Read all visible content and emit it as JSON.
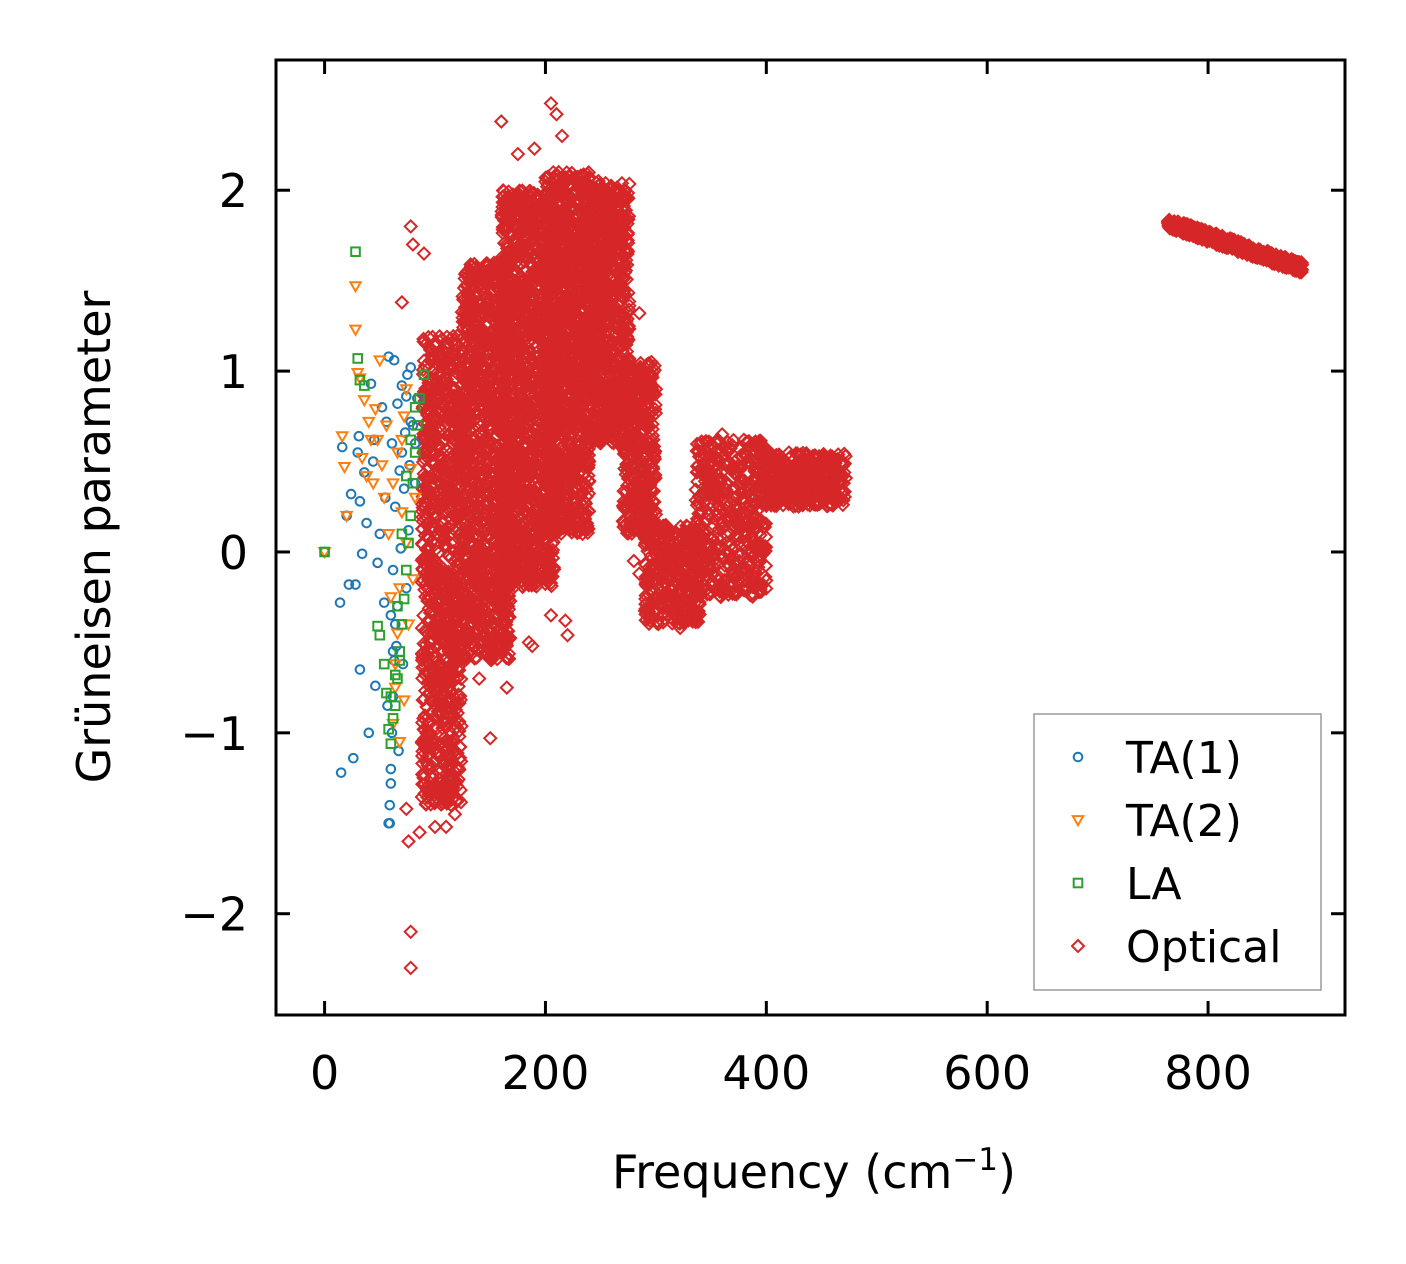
{
  "chart_data": {
    "type": "scatter",
    "title": "",
    "xlabel": "Frequency (cm",
    "xlabel_sup": "−1",
    "xlabel_close": ")",
    "ylabel": "Grüneisen parameter",
    "xlim": [
      -44,
      924
    ],
    "ylim": [
      -2.56,
      2.72
    ],
    "xticks": [
      0,
      200,
      400,
      600,
      800
    ],
    "xtick_labels": [
      "0",
      "200",
      "400",
      "600",
      "800"
    ],
    "yticks": [
      -2,
      -1,
      0,
      1,
      2
    ],
    "ytick_labels": [
      "−2",
      "−1",
      "0",
      "1",
      "2"
    ],
    "grid": false,
    "legend_position": "lower-right",
    "series": [
      {
        "name": "TA(1)",
        "marker": "circle",
        "color": "#1f77b4",
        "points": [
          [
            0,
            0
          ],
          [
            14,
            -0.28
          ],
          [
            15,
            -1.22
          ],
          [
            16,
            0.58
          ],
          [
            20,
            0.2
          ],
          [
            22,
            -0.18
          ],
          [
            24,
            0.32
          ],
          [
            26,
            -1.14
          ],
          [
            28,
            -0.18
          ],
          [
            30,
            0.55
          ],
          [
            31,
            0.64
          ],
          [
            32,
            0.28
          ],
          [
            32,
            -0.65
          ],
          [
            34,
            -0.01
          ],
          [
            36,
            0.44
          ],
          [
            38,
            0.16
          ],
          [
            40,
            -1.0
          ],
          [
            42,
            0.93
          ],
          [
            44,
            0.5
          ],
          [
            45,
            0.62
          ],
          [
            46,
            -0.74
          ],
          [
            48,
            -0.06
          ],
          [
            50,
            0.1
          ],
          [
            52,
            0.8
          ],
          [
            54,
            -0.28
          ],
          [
            55,
            0.3
          ],
          [
            56,
            0.72
          ],
          [
            57,
            -0.85
          ],
          [
            58,
            1.08
          ],
          [
            59,
            -1.5
          ],
          [
            60,
            -1.28
          ],
          [
            61,
            0.6
          ],
          [
            62,
            -0.1
          ],
          [
            63,
            1.06
          ],
          [
            64,
            0.25
          ],
          [
            65,
            -0.52
          ],
          [
            66,
            0.82
          ],
          [
            67,
            -1.1
          ],
          [
            68,
            0.45
          ],
          [
            69,
            0.02
          ],
          [
            70,
            0.92
          ],
          [
            71,
            -0.62
          ],
          [
            72,
            0.35
          ],
          [
            73,
            0.66
          ],
          [
            74,
            -0.2
          ],
          [
            75,
            0.98
          ],
          [
            76,
            0.12
          ],
          [
            77,
            0.48
          ],
          [
            78,
            1.02
          ],
          [
            80,
            0.7
          ],
          [
            82,
            0.38
          ],
          [
            84,
            0.85
          ],
          [
            58,
            -1.5
          ],
          [
            59,
            -1.4
          ],
          [
            60,
            -1.2
          ],
          [
            61,
            -1.0
          ],
          [
            62,
            -0.8
          ],
          [
            63,
            -0.6
          ],
          [
            64,
            -0.4
          ],
          [
            60,
            -0.35
          ],
          [
            62,
            -0.55
          ],
          [
            66,
            -0.3
          ],
          [
            70,
            0.55
          ],
          [
            74,
            0.86
          ],
          [
            78,
            0.72
          ],
          [
            82,
            0.6
          ]
        ]
      },
      {
        "name": "TA(2)",
        "marker": "triangle-down",
        "color": "#ff7f0e",
        "points": [
          [
            0,
            0
          ],
          [
            16,
            0.64
          ],
          [
            18,
            0.47
          ],
          [
            20,
            0.2
          ],
          [
            28,
            1.47
          ],
          [
            28,
            1.23
          ],
          [
            30,
            0.99
          ],
          [
            32,
            0.96
          ],
          [
            34,
            0.52
          ],
          [
            36,
            0.84
          ],
          [
            38,
            0.42
          ],
          [
            40,
            0.72
          ],
          [
            42,
            0.62
          ],
          [
            44,
            0.38
          ],
          [
            46,
            0.79
          ],
          [
            48,
            0.62
          ],
          [
            50,
            1.06
          ],
          [
            52,
            0.48
          ],
          [
            54,
            0.3
          ],
          [
            56,
            0.7
          ],
          [
            58,
            0.1
          ],
          [
            60,
            -0.25
          ],
          [
            62,
            0.38
          ],
          [
            64,
            -0.62
          ],
          [
            66,
            0.55
          ],
          [
            68,
            -1.05
          ],
          [
            70,
            0.22
          ],
          [
            72,
            -0.82
          ],
          [
            74,
            0.05
          ],
          [
            76,
            -0.4
          ],
          [
            78,
            0.46
          ],
          [
            80,
            -0.15
          ],
          [
            82,
            0.3
          ],
          [
            62,
            -0.95
          ],
          [
            64,
            -0.75
          ],
          [
            66,
            -0.45
          ],
          [
            68,
            -0.2
          ],
          [
            70,
            0.62
          ],
          [
            72,
            0.75
          ],
          [
            74,
            0.9
          ]
        ]
      },
      {
        "name": "LA",
        "marker": "square",
        "color": "#2ca02c",
        "points": [
          [
            0,
            0
          ],
          [
            28,
            1.66
          ],
          [
            30,
            1.07
          ],
          [
            32,
            0.95
          ],
          [
            36,
            0.92
          ],
          [
            48,
            -0.41
          ],
          [
            50,
            -0.46
          ],
          [
            54,
            -0.62
          ],
          [
            56,
            -0.78
          ],
          [
            58,
            -0.98
          ],
          [
            60,
            -1.06
          ],
          [
            62,
            -0.92
          ],
          [
            64,
            -0.85
          ],
          [
            66,
            -0.7
          ],
          [
            68,
            -0.55
          ],
          [
            70,
            -0.4
          ],
          [
            72,
            -0.26
          ],
          [
            74,
            -0.1
          ],
          [
            76,
            0.05
          ],
          [
            78,
            0.2
          ],
          [
            80,
            0.38
          ],
          [
            82,
            0.55
          ],
          [
            84,
            0.7
          ],
          [
            86,
            0.85
          ],
          [
            90,
            0.98
          ],
          [
            66,
            -0.3
          ],
          [
            70,
            0.1
          ],
          [
            74,
            0.42
          ],
          [
            78,
            0.62
          ],
          [
            82,
            0.8
          ],
          [
            60,
            -0.8
          ],
          [
            64,
            -0.68
          ],
          [
            68,
            -0.6
          ]
        ]
      },
      {
        "name": "Optical",
        "marker": "diamond",
        "color": "#d62728",
        "points": [
          [
            78,
            -2.1
          ],
          [
            78,
            -2.3
          ],
          [
            78,
            1.8
          ],
          [
            80,
            1.7
          ],
          [
            90,
            1.65
          ],
          [
            70,
            1.38
          ],
          [
            76,
            -1.6
          ],
          [
            74,
            -1.42
          ],
          [
            86,
            -1.55
          ],
          [
            100,
            -1.52
          ],
          [
            110,
            -1.52
          ],
          [
            118,
            -1.45
          ],
          [
            110,
            -1.05
          ],
          [
            140,
            -0.7
          ],
          [
            150,
            -1.03
          ],
          [
            165,
            -0.75
          ],
          [
            185,
            -0.5
          ],
          [
            188,
            -0.52
          ],
          [
            205,
            -0.35
          ],
          [
            218,
            -0.38
          ],
          [
            220,
            -0.46
          ],
          [
            160,
            2.38
          ],
          [
            175,
            2.2
          ],
          [
            190,
            2.23
          ],
          [
            205,
            2.48
          ],
          [
            210,
            2.42
          ],
          [
            215,
            2.3
          ],
          [
            248,
            2.05
          ],
          [
            262,
            2.0
          ],
          [
            285,
            1.32
          ],
          [
            296,
            1.05
          ],
          [
            300,
            0.9
          ],
          [
            312,
            -0.05
          ],
          [
            316,
            -0.12
          ],
          [
            322,
            -0.42
          ],
          [
            330,
            -0.18
          ],
          [
            340,
            0.3
          ],
          [
            350,
            0.6
          ],
          [
            360,
            0.65
          ],
          [
            375,
            0.48
          ],
          [
            380,
            -0.1
          ],
          [
            382,
            -0.2
          ],
          [
            390,
            0.55
          ],
          [
            400,
            0.44
          ],
          [
            410,
            0.45
          ],
          [
            425,
            0.46
          ],
          [
            440,
            0.28
          ],
          [
            455,
            0.32
          ],
          [
            470,
            0.38
          ],
          [
            280,
            -0.05
          ],
          [
            285,
            -0.12
          ],
          [
            130,
            1.32
          ],
          [
            140,
            1.2
          ],
          [
            150,
            1.1
          ],
          [
            160,
            1.4
          ],
          [
            170,
            1.15
          ],
          [
            178,
            1.52
          ],
          [
            185,
            1.35
          ],
          [
            195,
            1.2
          ],
          [
            235,
            0.38
          ],
          [
            240,
            0.75
          ],
          [
            120,
            0.2
          ],
          [
            125,
            -0.2
          ]
        ],
        "clusters": [
          {
            "x": [
              88,
              124
            ],
            "y": [
              -1.4,
              1.2
            ],
            "count": 1000
          },
          {
            "x": [
              124,
              168
            ],
            "y": [
              -0.6,
              1.6
            ],
            "count": 1200
          },
          {
            "x": [
              160,
              208
            ],
            "y": [
              -0.2,
              2.0
            ],
            "count": 1400
          },
          {
            "x": [
              200,
              240
            ],
            "y": [
              0.1,
              2.1
            ],
            "count": 1200
          },
          {
            "x": [
              236,
              276
            ],
            "y": [
              0.6,
              2.05
            ],
            "count": 900
          },
          {
            "x": [
              270,
              300
            ],
            "y": [
              0.1,
              1.05
            ],
            "count": 400
          },
          {
            "x": [
              290,
              340
            ],
            "y": [
              -0.4,
              0.15
            ],
            "count": 400
          },
          {
            "x": [
              336,
              400
            ],
            "y": [
              -0.25,
              0.62
            ],
            "count": 500
          },
          {
            "x": [
              396,
              472
            ],
            "y": [
              0.25,
              0.55
            ],
            "count": 400
          }
        ],
        "bands": [
          {
            "x": [
              763,
              885
            ],
            "y": [
              1.82,
              1.57
            ],
            "width": 0.06,
            "count": 500
          }
        ]
      }
    ]
  }
}
